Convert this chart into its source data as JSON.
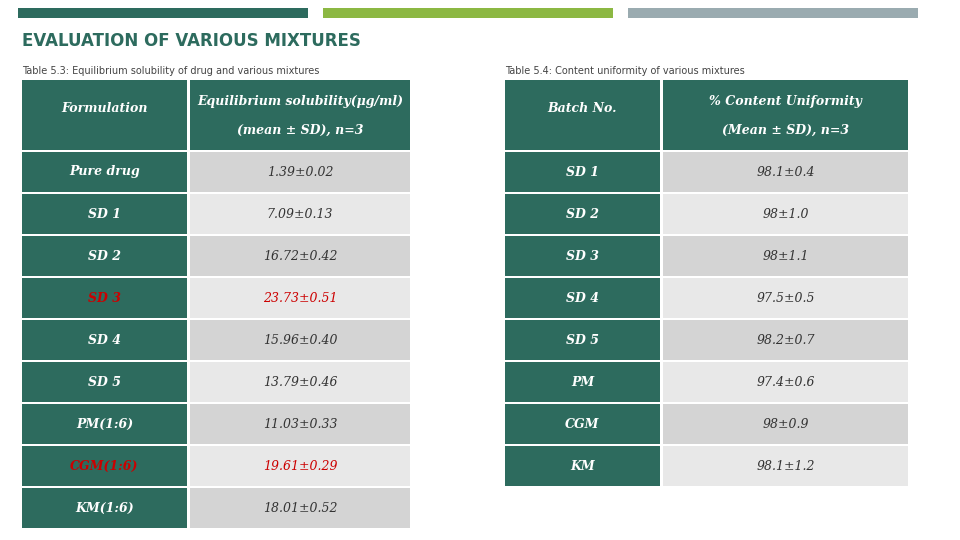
{
  "title": "EVALUATION OF VARIOUS MIXTURES",
  "table1_caption": "Table 5.3: Equilibrium solubility of drug and various mixtures",
  "table2_caption": "Table 5.4: Content uniformity of various mixtures",
  "table1_header_col1": "Formulation",
  "table1_header_col2_line1": "Equilibrium solubility(μg/ml)",
  "table1_header_col2_line2": "(mean ± SD), n=3",
  "table1_rows": [
    [
      "Pure drug",
      "1.39±0.02",
      false
    ],
    [
      "SD 1",
      "7.09±0.13",
      false
    ],
    [
      "SD 2",
      "16.72±0.42",
      false
    ],
    [
      "SD 3",
      "23.73±0.51",
      true
    ],
    [
      "SD 4",
      "15.96±0.40",
      false
    ],
    [
      "SD 5",
      "13.79±0.46",
      false
    ],
    [
      "PM(1:6)",
      "11.03±0.33",
      false
    ],
    [
      "CGM(1:6)",
      "19.61±0.29",
      true
    ],
    [
      "KM(1:6)",
      "18.01±0.52",
      false
    ]
  ],
  "table2_header_col1": "Batch No.",
  "table2_header_col2_line1": "% Content Uniformity",
  "table2_header_col2_line2": "(Mean ± SD), n=3",
  "table2_rows": [
    [
      "SD 1",
      "98.1±0.4"
    ],
    [
      "SD 2",
      "98±1.0"
    ],
    [
      "SD 3",
      "98±1.1"
    ],
    [
      "SD 4",
      "97.5±0.5"
    ],
    [
      "SD 5",
      "98.2±0.7"
    ],
    [
      "PM",
      "97.4±0.6"
    ],
    [
      "CGM",
      "98±0.9"
    ],
    [
      "KM",
      "98.1±1.2"
    ]
  ],
  "header_bg": "#2d6b5e",
  "header_fg": "#ffffff",
  "row_col1_bg": "#2d6b5e",
  "row_col2_bg_light": "#d4d4d4",
  "row_col2_bg_lighter": "#e8e8e8",
  "row_fg_white": "#ffffff",
  "row_fg_dark": "#333333",
  "highlight_fg": "#cc0000",
  "bar1_color": "#2d6b5e",
  "bar2_color": "#8cb843",
  "bar3_color": "#9aabb0",
  "bg_color": "#ffffff",
  "title_color": "#2d6b5e",
  "caption_color": "#444444",
  "gap_color": "#ffffff"
}
